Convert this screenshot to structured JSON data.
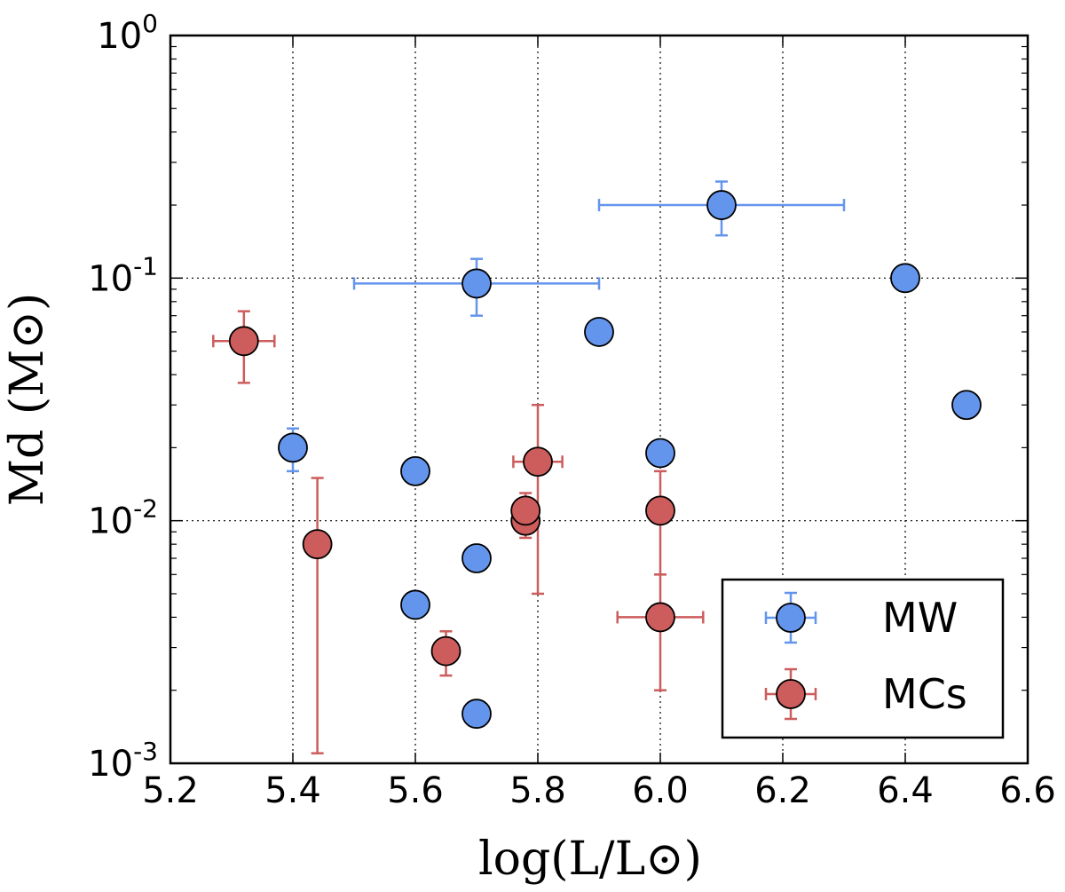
{
  "chart_data": {
    "type": "scatter",
    "xscale": "linear",
    "yscale": "log",
    "xlim": [
      5.2,
      6.6
    ],
    "ylim": [
      0.001,
      1
    ],
    "grid": true,
    "xlabel": "log(L/L⊙)",
    "ylabel": "Md (M⊙)",
    "x_ticks": [
      {
        "value": 5.2,
        "label": "5.2"
      },
      {
        "value": 5.4,
        "label": "5.4"
      },
      {
        "value": 5.6,
        "label": "5.6"
      },
      {
        "value": 5.8,
        "label": "5.8"
      },
      {
        "value": 6.0,
        "label": "6.0"
      },
      {
        "value": 6.2,
        "label": "6.2"
      },
      {
        "value": 6.4,
        "label": "6.4"
      },
      {
        "value": 6.6,
        "label": "6.6"
      }
    ],
    "y_ticks": [
      {
        "value": 1,
        "base": "10",
        "exp": "0"
      },
      {
        "value": 0.1,
        "base": "10",
        "exp": "-1"
      },
      {
        "value": 0.01,
        "base": "10",
        "exp": "-2"
      },
      {
        "value": 0.001,
        "base": "10",
        "exp": "-3"
      }
    ],
    "legend": {
      "location": "lower-right"
    },
    "series": [
      {
        "name": "MW",
        "color": "#6495ed",
        "points": [
          {
            "x": 6.1,
            "y": 0.2,
            "xerr": [
              0.2,
              0.2
            ],
            "yerr": [
              0.05,
              0.05
            ]
          },
          {
            "x": 5.7,
            "y": 0.095,
            "xerr": [
              0.2,
              0.2
            ],
            "yerr": [
              0.025,
              0.025
            ]
          },
          {
            "x": 6.4,
            "y": 0.1
          },
          {
            "x": 5.9,
            "y": 0.06
          },
          {
            "x": 6.5,
            "y": 0.03
          },
          {
            "x": 5.4,
            "y": 0.02,
            "yerr": [
              0.004,
              0.004
            ]
          },
          {
            "x": 5.6,
            "y": 0.016
          },
          {
            "x": 6.0,
            "y": 0.019
          },
          {
            "x": 5.7,
            "y": 0.007
          },
          {
            "x": 5.6,
            "y": 0.0045
          },
          {
            "x": 5.7,
            "y": 0.0016
          }
        ]
      },
      {
        "name": "MCs",
        "color": "#cd5c5c",
        "points": [
          {
            "x": 5.32,
            "y": 0.055,
            "xerr": [
              0.05,
              0.05
            ],
            "yerr": [
              0.018,
              0.018
            ]
          },
          {
            "x": 5.44,
            "y": 0.008,
            "yerr": [
              0.0069,
              0.007
            ]
          },
          {
            "x": 5.65,
            "y": 0.0029,
            "yerr": [
              0.0006,
              0.0006
            ]
          },
          {
            "x": 5.78,
            "y": 0.01,
            "yerr": [
              0.0015,
              0.0015
            ]
          },
          {
            "x": 5.78,
            "y": 0.011,
            "yerr": [
              0.001,
              0.002
            ]
          },
          {
            "x": 5.8,
            "y": 0.0175,
            "xerr": [
              0.04,
              0.04
            ],
            "yerr": [
              0.0125,
              0.0125
            ]
          },
          {
            "x": 6.0,
            "y": 0.011,
            "yerr": [
              0.005,
              0.005
            ]
          },
          {
            "x": 6.0,
            "y": 0.004,
            "xerr": [
              0.07,
              0.07
            ],
            "yerr": [
              0.002,
              0.002
            ]
          }
        ]
      }
    ]
  }
}
